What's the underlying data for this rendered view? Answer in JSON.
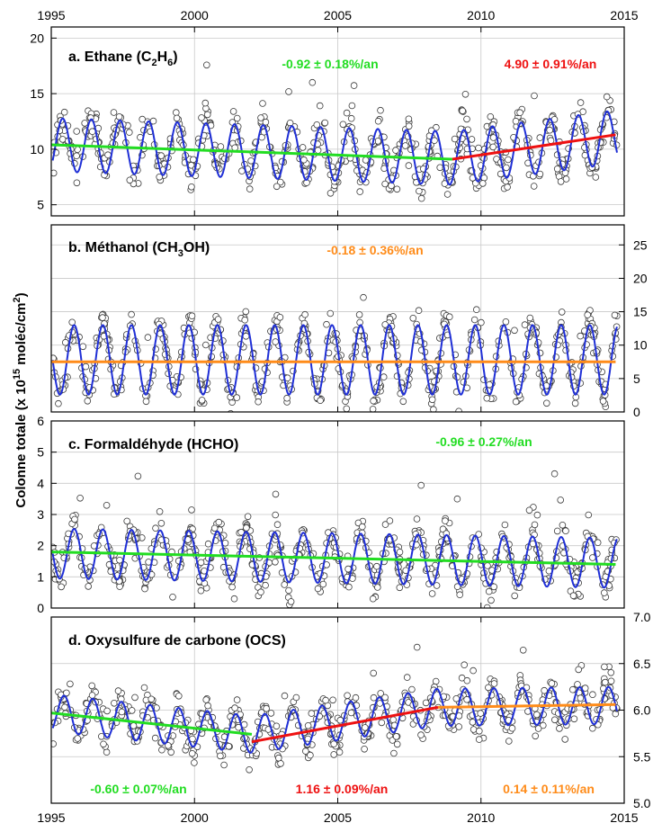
{
  "chart_data": {
    "type": "scatter",
    "xlim": [
      1995,
      2015
    ],
    "x_ticks": [
      "1995",
      "2000",
      "2005",
      "2010",
      "2015"
    ],
    "ylabel": "Colonne totale (x 10",
    "ylabel_exp": "15",
    "ylabel_tail": " moléc/cm",
    "ylabel_sq": "2",
    "ylabel_close": ")",
    "grid": true,
    "panels": [
      {
        "id": "ethane",
        "title": "a. Ethane (C",
        "title_sub1": "2",
        "title_mid": "H",
        "title_sub2": "6",
        "title_end": ")",
        "yaxis_side": "left",
        "ylim": [
          4,
          21
        ],
        "yticks": [
          "5",
          "10",
          "15",
          "20"
        ],
        "ytick_values": [
          5,
          10,
          15,
          20
        ],
        "seasonal": {
          "mean_at": [
            [
              1995,
              10.4
            ],
            [
              2009,
              9.2
            ],
            [
              2014.7,
              11.1
            ]
          ],
          "amplitude": 2.4,
          "phase": 0.15
        },
        "noise": 1.6,
        "scatter_center": 10.2,
        "trends": [
          {
            "label": "-0.92 ± 0.18%/an",
            "color": "#22dd22",
            "x": [
              1995,
              2009
            ],
            "y": [
              10.4,
              9.1
            ]
          },
          {
            "label": "4.90 ± 0.91%/an",
            "color": "#ee1111",
            "x": [
              2009,
              2014.7
            ],
            "y": [
              9.1,
              11.3
            ]
          }
        ]
      },
      {
        "id": "methanol",
        "title": "b. Méthanol (CH",
        "title_sub1": "3",
        "title_mid": "OH)",
        "title_sub2": "",
        "title_end": "",
        "yaxis_side": "right",
        "ylim": [
          0,
          28
        ],
        "yticks": [
          "0",
          "5",
          "10",
          "15",
          "20",
          "25"
        ],
        "ytick_values": [
          0,
          5,
          10,
          15,
          20,
          25
        ],
        "seasonal": {
          "mean_at": [
            [
              1995,
              7.8
            ],
            [
              2014.7,
              7.8
            ]
          ],
          "amplitude": 5.2,
          "phase": 0.55
        },
        "noise": 2.4,
        "scatter_center": 7.5,
        "trends": [
          {
            "label": "-0.18 ± 0.36%/an",
            "color": "#ff8c1a",
            "x": [
              1995,
              2014.7
            ],
            "y": [
              7.5,
              7.5
            ]
          }
        ]
      },
      {
        "id": "formaldehyde",
        "title": "c. Formaldéhyde (HCHO)",
        "title_sub1": "",
        "title_mid": "",
        "title_sub2": "",
        "title_end": "",
        "yaxis_side": "left",
        "ylim": [
          0,
          6
        ],
        "yticks": [
          "0",
          "1",
          "2",
          "3",
          "4",
          "5",
          "6"
        ],
        "ytick_values": [
          0,
          1,
          2,
          3,
          4,
          5,
          6
        ],
        "seasonal": {
          "mean_at": [
            [
              1995,
              1.75
            ],
            [
              2014.7,
              1.45
            ]
          ],
          "amplitude": 0.8,
          "phase": 0.55
        },
        "noise": 0.55,
        "scatter_center": 1.7,
        "trends": [
          {
            "label": "-0.96 ± 0.27%/an",
            "color": "#22dd22",
            "x": [
              1995,
              2014.7
            ],
            "y": [
              1.8,
              1.4
            ]
          }
        ]
      },
      {
        "id": "ocs",
        "title": "d. Oxysulfure de carbone (OCS)",
        "title_sub1": "",
        "title_mid": "",
        "title_sub2": "",
        "title_end": "",
        "yaxis_side": "right",
        "ylim": [
          5.0,
          7.0
        ],
        "yticks": [
          "5.0",
          "5.5",
          "6.0",
          "6.5",
          "7.0"
        ],
        "ytick_values": [
          5.0,
          5.5,
          6.0,
          6.5,
          7.0
        ],
        "seasonal": {
          "mean_at": [
            [
              1995,
              5.97
            ],
            [
              2002,
              5.74
            ],
            [
              2008.5,
              6.03
            ],
            [
              2014.7,
              6.05
            ]
          ],
          "amplitude": 0.2,
          "phase": 0.2
        },
        "noise": 0.17,
        "scatter_center": 5.9,
        "trends": [
          {
            "label": "-0.60 ± 0.07%/an",
            "color": "#22dd22",
            "x": [
              1995,
              2002
            ],
            "y": [
              5.97,
              5.74
            ]
          },
          {
            "label": "1.16 ± 0.09%/an",
            "color": "#ee1111",
            "x": [
              2002,
              2008.5
            ],
            "y": [
              5.66,
              6.03
            ]
          },
          {
            "label": "0.14 ± 0.11%/an",
            "color": "#ff8c1a",
            "x": [
              2008.5,
              2014.7
            ],
            "y": [
              6.03,
              6.06
            ]
          }
        ]
      }
    ]
  },
  "colors": {
    "fit_line": "#1f2fd6",
    "points_stroke": "#3a3a3a",
    "grid": "#c8c8c8"
  }
}
